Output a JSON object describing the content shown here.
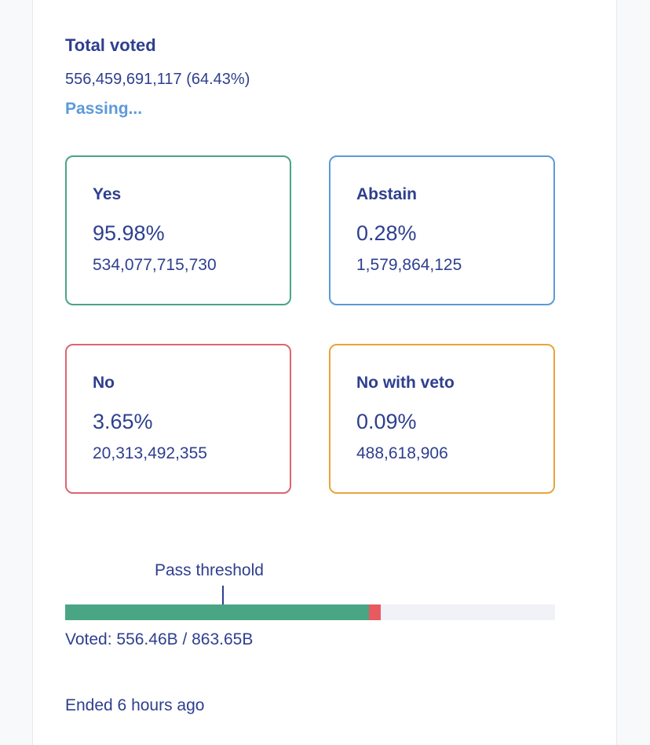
{
  "summary": {
    "total_title": "Total voted",
    "total_value": "556,459,691,117 (64.43%)",
    "status": "Passing..."
  },
  "votes": {
    "yes": {
      "label": "Yes",
      "percent": "95.98%",
      "amount": "534,077,715,730",
      "color": "#4aa585"
    },
    "abstain": {
      "label": "Abstain",
      "percent": "0.28%",
      "amount": "1,579,864,125",
      "color": "#5c9ad8"
    },
    "no": {
      "label": "No",
      "percent": "3.65%",
      "amount": "20,313,492,355",
      "color": "#dd6470"
    },
    "veto": {
      "label": "No with veto",
      "percent": "0.09%",
      "amount": "488,618,906",
      "color": "#e8a43a"
    }
  },
  "progress": {
    "threshold_label": "Pass threshold",
    "threshold_fraction": 0.325,
    "yes_fraction": 0.6194,
    "no_fraction": 0.0256,
    "voted_text": "Voted: 556.46B / 863.65B"
  },
  "footer": {
    "ended_text": "Ended 6 hours ago"
  }
}
